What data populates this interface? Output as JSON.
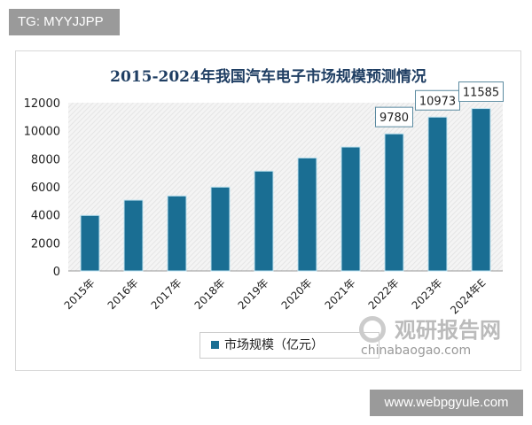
{
  "tag_label": "TG: MYYJJPP",
  "site_label": "www.webpgyule.com",
  "watermark": {
    "cn": "观研报告网",
    "en": "chinabaogao.com"
  },
  "chart_data": {
    "type": "bar",
    "title": "2015-2024年我国汽车电子市场规模预测情况",
    "categories": [
      "2015年",
      "2016年",
      "2017年",
      "2018年",
      "2019年",
      "2020年",
      "2021年",
      "2022年",
      "2023年",
      "2024年E"
    ],
    "series": [
      {
        "name": "市场规模（亿元）",
        "values": [
          3960,
          5050,
          5350,
          5980,
          7120,
          8060,
          8840,
          9780,
          10973,
          11585
        ],
        "color": "#1a6e93"
      }
    ],
    "data_labels": {
      "7": "9780",
      "8": "10973",
      "9": "11585"
    },
    "yticks": [
      "0",
      "2000",
      "4000",
      "6000",
      "8000",
      "10000",
      "12000"
    ],
    "ylim": [
      0,
      12000
    ],
    "grid": false,
    "legend": "bottom"
  }
}
